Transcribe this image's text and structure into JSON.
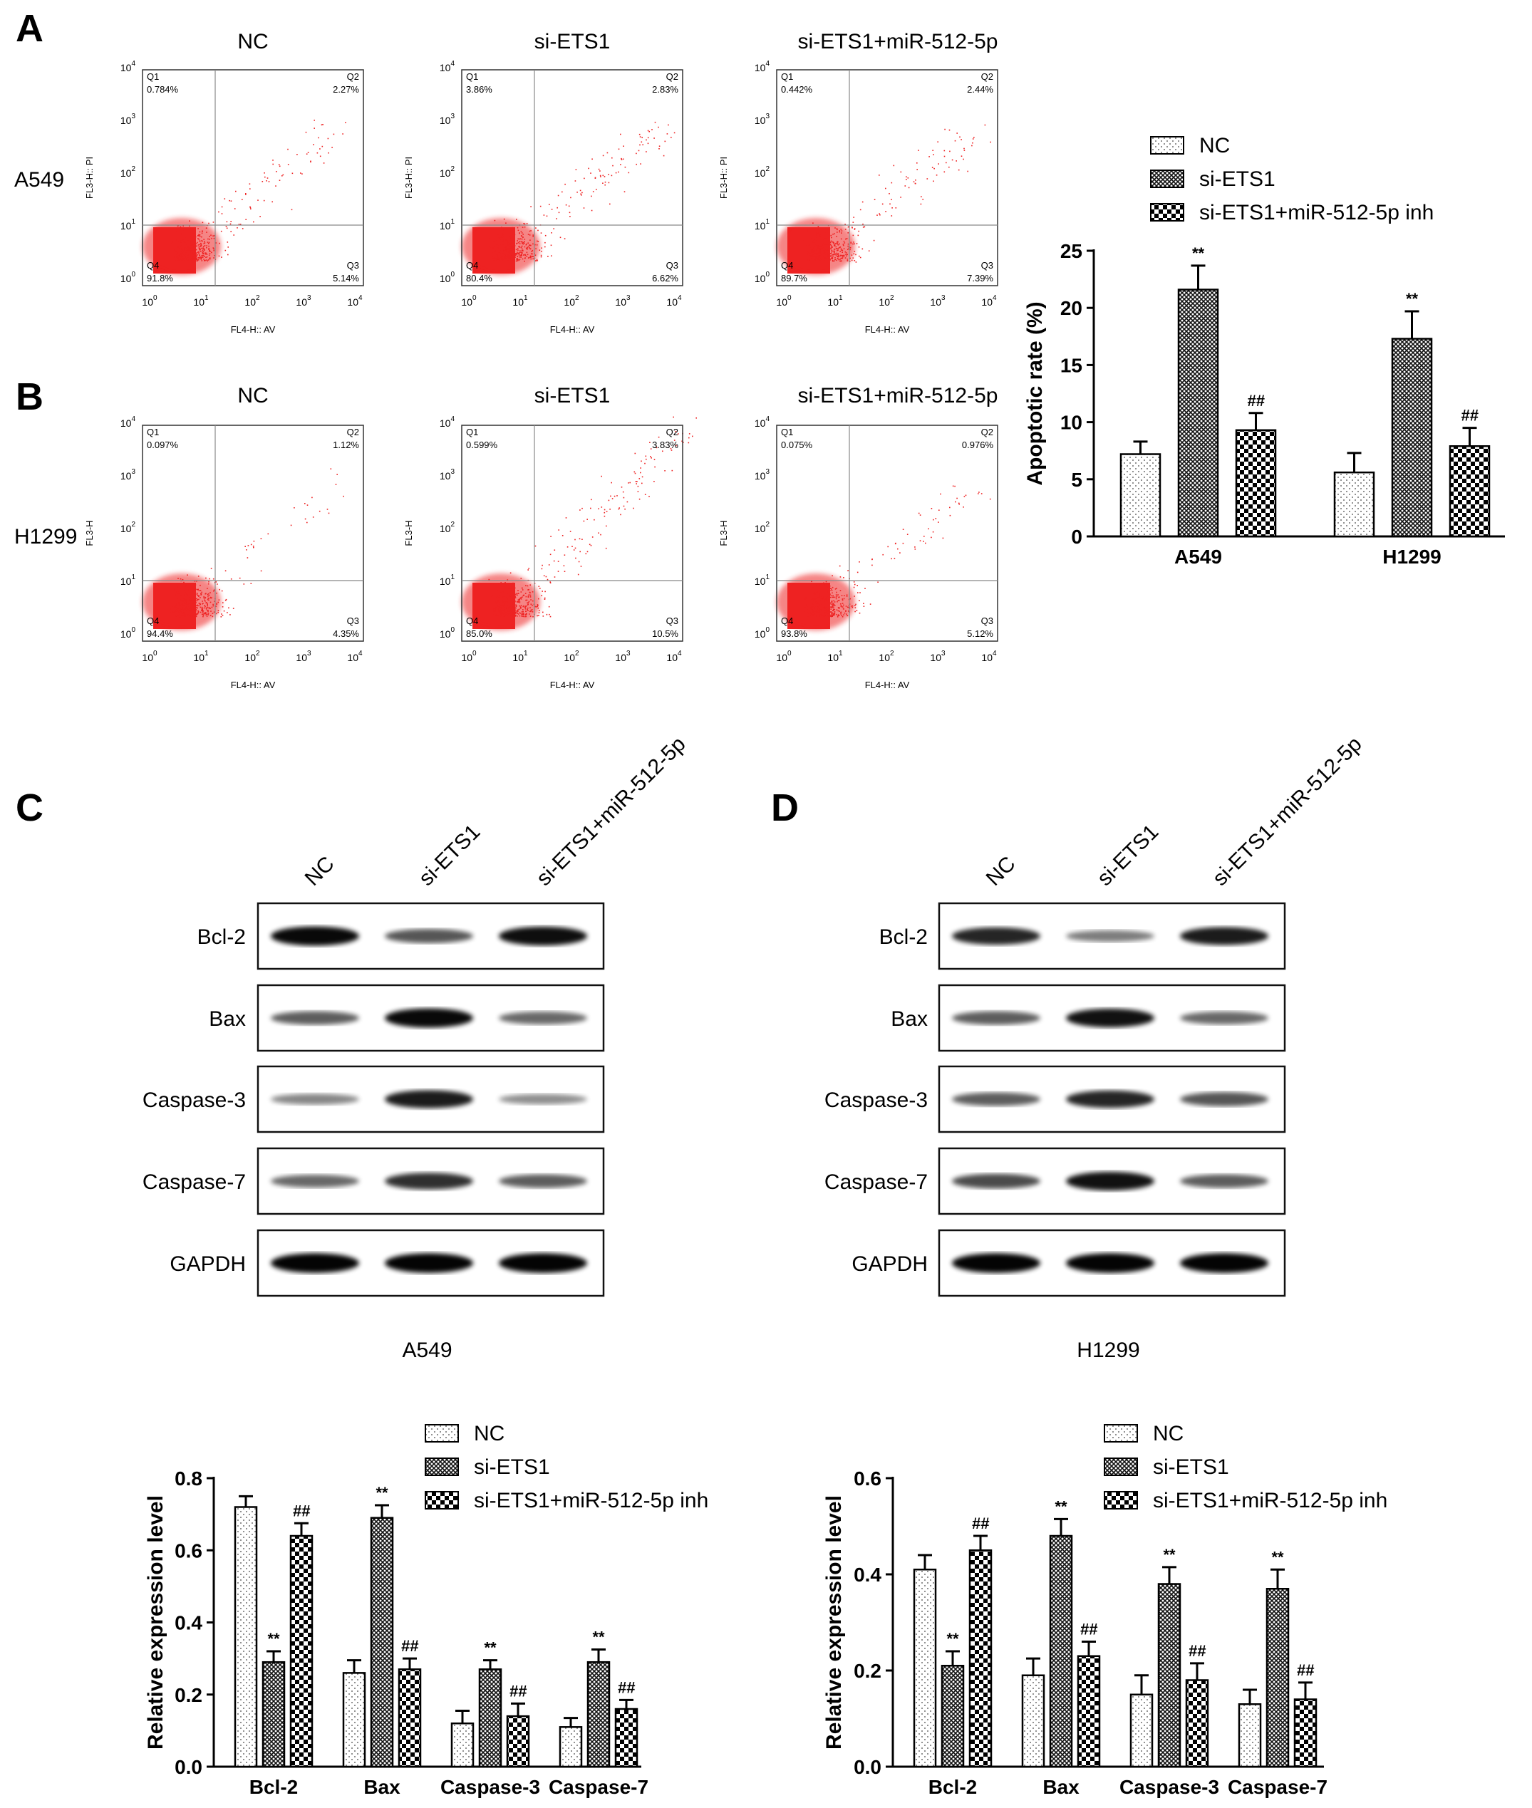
{
  "panel_labels": [
    "A",
    "B",
    "C",
    "D"
  ],
  "groups": [
    "NC",
    "si-ETS1",
    "si-ETS1+miR-512-5p"
  ],
  "flow": {
    "x_label": "FL4-H:: AV",
    "ticks": [
      "10",
      "0",
      "1",
      "2",
      "3",
      "4"
    ],
    "rows": [
      {
        "cell_line": "A549",
        "y_label": "FL3-H:: PI",
        "plots": [
          {
            "q1": "0.784%",
            "q2": "2.27%",
            "q3": "5.14%",
            "q4": "91.8%"
          },
          {
            "q1": "3.86%",
            "q2": "2.83%",
            "q3": "6.62%",
            "q4": "80.4%"
          },
          {
            "q1": "0.442%",
            "q2": "2.44%",
            "q3": "7.39%",
            "q4": "89.7%"
          }
        ]
      },
      {
        "cell_line": "H1299",
        "y_label": "FL3-H",
        "plots": [
          {
            "q1": "0.097%",
            "q2": "1.12%",
            "q3": "4.35%",
            "q4": "94.4%"
          },
          {
            "q1": "0.599%",
            "q2": "3.83%",
            "q3": "10.5%",
            "q4": "85.0%"
          },
          {
            "q1": "0.075%",
            "q2": "0.976%",
            "q3": "5.12%",
            "q4": "93.8%"
          }
        ]
      }
    ],
    "quadrant_names": [
      "Q1",
      "Q2",
      "Q3",
      "Q4"
    ]
  },
  "blots": {
    "proteins": [
      "Bcl-2",
      "Bax",
      "Caspase-3",
      "Caspase-7",
      "GAPDH"
    ],
    "panels": [
      {
        "cell_line": "A549"
      },
      {
        "cell_line": "H1299"
      }
    ]
  },
  "colors": {
    "dots": "#ee2222",
    "bars": "#000000"
  },
  "chart_data": [
    {
      "type": "bar",
      "ylabel": "Apoptotic rate (%)",
      "categories": [
        "A549",
        "H1299"
      ],
      "ylim": [
        0,
        25
      ],
      "yticks": [
        "0",
        "5",
        "10",
        "15",
        "20",
        "25"
      ],
      "series": [
        {
          "name": "NC",
          "values": [
            7.2,
            5.6
          ],
          "errors": [
            1.1,
            1.7
          ],
          "sig": [
            "",
            ""
          ]
        },
        {
          "name": "si-ETS1",
          "values": [
            21.6,
            17.3
          ],
          "errors": [
            2.1,
            2.4
          ],
          "sig": [
            "**",
            "**"
          ]
        },
        {
          "name": "si-ETS1+miR-512-5p inh",
          "values": [
            9.3,
            7.9
          ],
          "errors": [
            1.5,
            1.6
          ],
          "sig": [
            "##",
            "##"
          ]
        }
      ]
    },
    {
      "type": "bar",
      "ylabel": "Relative expression level",
      "categories": [
        "Bcl-2",
        "Bax",
        "Caspase-3",
        "Caspase-7"
      ],
      "ylim": [
        0,
        0.8
      ],
      "yticks": [
        "0.0",
        "0.2",
        "0.4",
        "0.6",
        "0.8"
      ],
      "series": [
        {
          "name": "NC",
          "values": [
            0.72,
            0.26,
            0.12,
            0.11
          ],
          "errors": [
            0.03,
            0.035,
            0.035,
            0.025
          ],
          "sig": [
            "",
            "",
            "",
            ""
          ]
        },
        {
          "name": "si-ETS1",
          "values": [
            0.29,
            0.69,
            0.27,
            0.29
          ],
          "errors": [
            0.03,
            0.035,
            0.025,
            0.035
          ],
          "sig": [
            "**",
            "**",
            "**",
            "**"
          ]
        },
        {
          "name": "si-ETS1+miR-512-5p inh",
          "values": [
            0.64,
            0.27,
            0.14,
            0.16
          ],
          "errors": [
            0.035,
            0.03,
            0.035,
            0.025
          ],
          "sig": [
            "##",
            "##",
            "##",
            "##"
          ]
        }
      ]
    },
    {
      "type": "bar",
      "ylabel": "Relative expression level",
      "categories": [
        "Bcl-2",
        "Bax",
        "Caspase-3",
        "Caspase-7"
      ],
      "ylim": [
        0,
        0.6
      ],
      "yticks": [
        "0.0",
        "0.2",
        "0.4",
        "0.6"
      ],
      "series": [
        {
          "name": "NC",
          "values": [
            0.41,
            0.19,
            0.15,
            0.13
          ],
          "errors": [
            0.03,
            0.035,
            0.04,
            0.03
          ],
          "sig": [
            "",
            "",
            "",
            ""
          ]
        },
        {
          "name": "si-ETS1",
          "values": [
            0.21,
            0.48,
            0.38,
            0.37
          ],
          "errors": [
            0.03,
            0.035,
            0.035,
            0.04
          ],
          "sig": [
            "**",
            "**",
            "**",
            "**"
          ]
        },
        {
          "name": "si-ETS1+miR-512-5p inh",
          "values": [
            0.45,
            0.23,
            0.18,
            0.14
          ],
          "errors": [
            0.03,
            0.03,
            0.035,
            0.035
          ],
          "sig": [
            "##",
            "##",
            "##",
            "##"
          ]
        }
      ]
    }
  ]
}
